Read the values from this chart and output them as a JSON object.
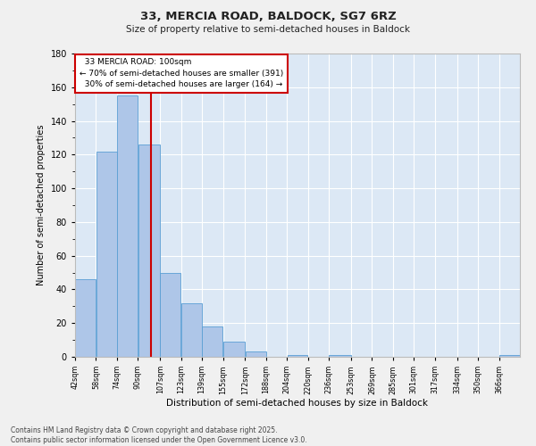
{
  "title1": "33, MERCIA ROAD, BALDOCK, SG7 6RZ",
  "title2": "Size of property relative to semi-detached houses in Baldock",
  "xlabel": "Distribution of semi-detached houses by size in Baldock",
  "ylabel": "Number of semi-detached properties",
  "property_label": "33 MERCIA ROAD: 100sqm",
  "smaller_pct": "70%",
  "smaller_count": 391,
  "larger_pct": "30%",
  "larger_count": 164,
  "property_size": 100,
  "bin_labels": [
    "42sqm",
    "58sqm",
    "74sqm",
    "90sqm",
    "107sqm",
    "123sqm",
    "139sqm",
    "155sqm",
    "172sqm",
    "188sqm",
    "204sqm",
    "220sqm",
    "236sqm",
    "253sqm",
    "269sqm",
    "285sqm",
    "301sqm",
    "317sqm",
    "334sqm",
    "350sqm",
    "366sqm"
  ],
  "bin_edges": [
    42,
    58,
    74,
    90,
    107,
    123,
    139,
    155,
    172,
    188,
    204,
    220,
    236,
    253,
    269,
    285,
    301,
    317,
    334,
    350,
    366,
    382
  ],
  "bar_values": [
    46,
    122,
    155,
    126,
    50,
    32,
    18,
    9,
    3,
    0,
    1,
    0,
    1,
    0,
    0,
    0,
    0,
    0,
    0,
    0,
    1
  ],
  "bar_color": "#aec6e8",
  "bar_edge_color": "#5a9fd4",
  "vline_x": 100,
  "vline_color": "#cc0000",
  "annotation_box_color": "#cc0000",
  "background_color": "#dce8f5",
  "fig_background_color": "#f0f0f0",
  "grid_color": "#ffffff",
  "ylim": [
    0,
    180
  ],
  "yticks": [
    0,
    20,
    40,
    60,
    80,
    100,
    120,
    140,
    160,
    180
  ],
  "footer": "Contains HM Land Registry data © Crown copyright and database right 2025.\nContains public sector information licensed under the Open Government Licence v3.0."
}
